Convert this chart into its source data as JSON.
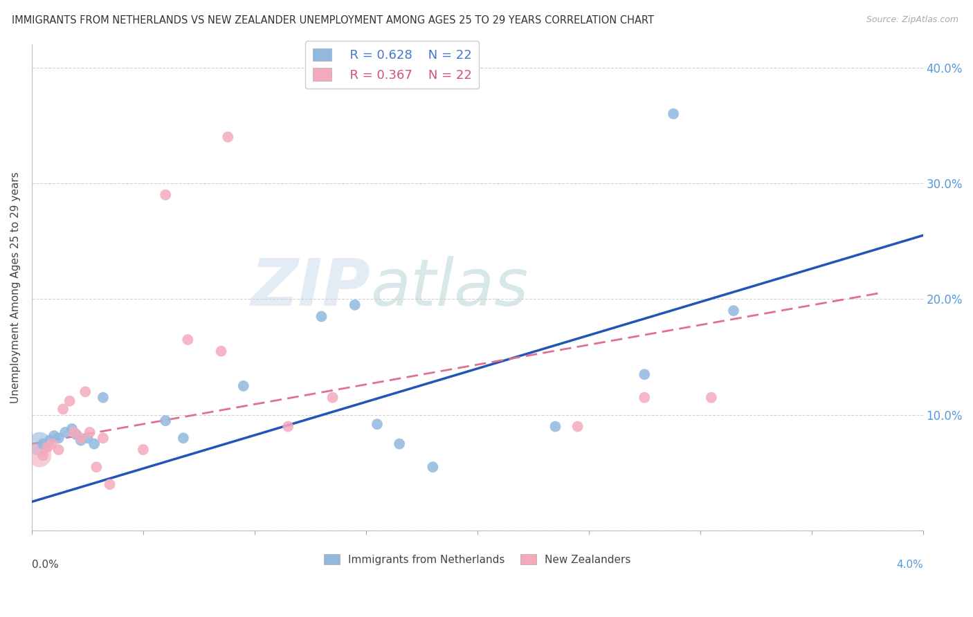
{
  "title": "IMMIGRANTS FROM NETHERLANDS VS NEW ZEALANDER UNEMPLOYMENT AMONG AGES 25 TO 29 YEARS CORRELATION CHART",
  "source": "Source: ZipAtlas.com",
  "ylabel": "Unemployment Among Ages 25 to 29 years",
  "xmin": 0.0,
  "xmax": 4.0,
  "ymin": 0.0,
  "ymax": 42.0,
  "yticks": [
    0,
    10,
    20,
    30,
    40
  ],
  "legend_blue_r": "R = 0.628",
  "legend_blue_n": "N = 22",
  "legend_pink_r": "R = 0.367",
  "legend_pink_n": "N = 22",
  "blue_color": "#92B8E0",
  "pink_color": "#F4AABB",
  "blue_line_color": "#2255BB",
  "pink_line_color": "#E07090",
  "watermark_zip": "ZIP",
  "watermark_atlas": "atlas",
  "blue_scatter_x": [
    0.05,
    0.08,
    0.1,
    0.12,
    0.15,
    0.18,
    0.2,
    0.22,
    0.25,
    0.28,
    0.32,
    0.6,
    0.68,
    0.95,
    1.3,
    1.45,
    1.55,
    1.65,
    1.8,
    2.35,
    2.75,
    3.15
  ],
  "blue_scatter_y": [
    7.5,
    7.8,
    8.2,
    8.0,
    8.5,
    8.8,
    8.3,
    7.8,
    8.0,
    7.5,
    11.5,
    9.5,
    8.0,
    12.5,
    18.5,
    19.5,
    9.2,
    7.5,
    5.5,
    9.0,
    13.5,
    19.0
  ],
  "blue_outlier_x": 2.88,
  "blue_outlier_y": 36.0,
  "pink_scatter_x": [
    0.05,
    0.07,
    0.09,
    0.12,
    0.14,
    0.17,
    0.19,
    0.22,
    0.24,
    0.26,
    0.29,
    0.32,
    0.35,
    0.5,
    0.7,
    0.85,
    1.15,
    1.35,
    2.45,
    2.75,
    3.05
  ],
  "pink_scatter_y": [
    6.5,
    7.2,
    7.5,
    7.0,
    10.5,
    11.2,
    8.5,
    8.0,
    12.0,
    8.5,
    5.5,
    8.0,
    4.0,
    7.0,
    16.5,
    15.5,
    9.0,
    11.5,
    9.0,
    11.5,
    11.5
  ],
  "pink_outlier_x": 0.88,
  "pink_outlier_y": 34.0,
  "pink_outlier2_x": 0.6,
  "pink_outlier2_y": 29.0,
  "blue_line_x0": 0.0,
  "blue_line_y0": 2.5,
  "blue_line_x1": 4.0,
  "blue_line_y1": 25.5,
  "pink_line_x0": 0.0,
  "pink_line_y0": 7.5,
  "pink_line_x1": 3.8,
  "pink_line_y1": 20.5,
  "large_bubble_blue_x": 0.035,
  "large_bubble_blue_y": 7.5,
  "large_bubble_pink_x": 0.035,
  "large_bubble_pink_y": 6.5
}
